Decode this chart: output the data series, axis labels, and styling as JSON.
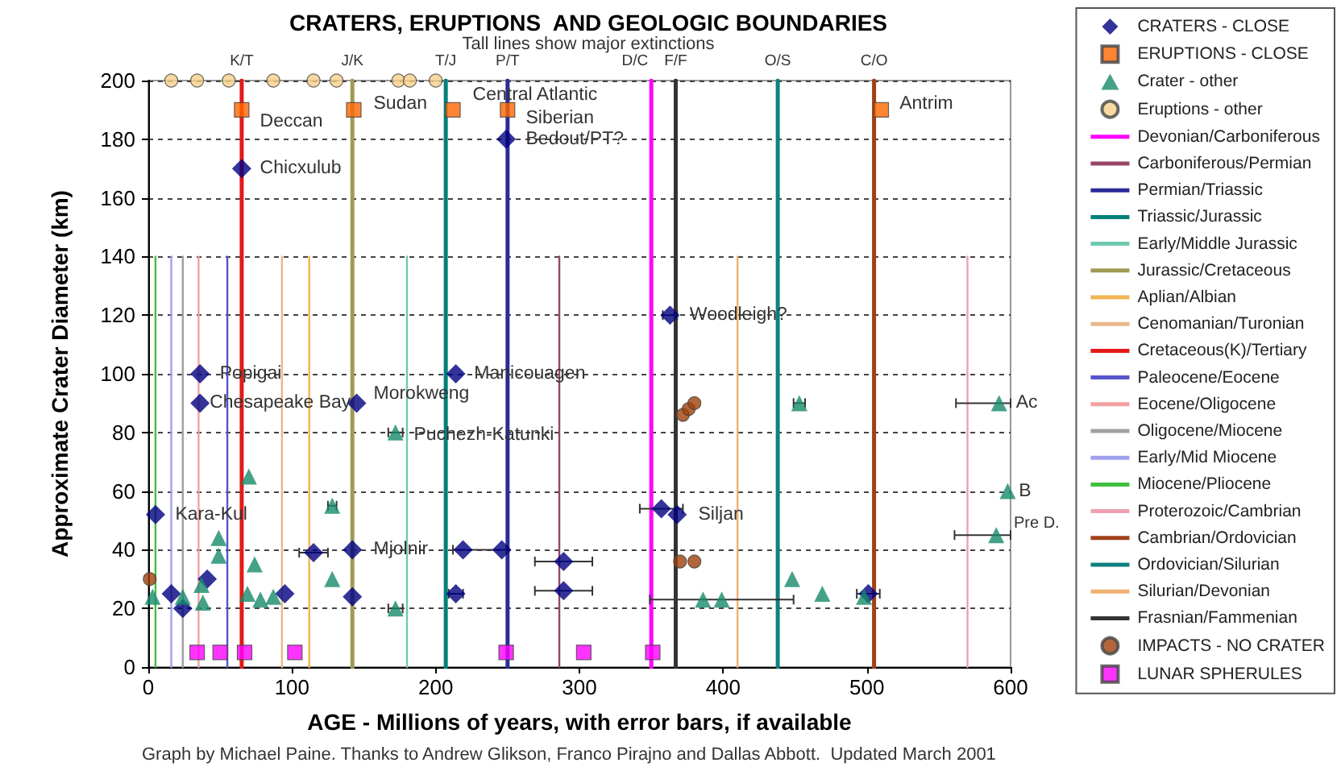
{
  "chart_data": {
    "type": "scatter",
    "title": "CRATERS, ERUPTIONS  AND GEOLOGIC BOUNDARIES",
    "subtitle": "Tall lines show major extinctions",
    "xlabel": "AGE - Millions of years, with error bars, if available",
    "ylabel": "Approximate Crater Diameter (km)",
    "xlim": [
      0,
      600
    ],
    "xticks": [
      0,
      100,
      200,
      300,
      400,
      500,
      600
    ],
    "ylim": [
      0,
      200
    ],
    "yticks": [
      0,
      20,
      40,
      60,
      80,
      100,
      120,
      140,
      160,
      180,
      200
    ],
    "grid": "y",
    "legend": "right",
    "series": [
      {
        "name": "CRATERS - CLOSE",
        "color": "#00007f",
        "marker": "diamond",
        "x": [
          5,
          16,
          24,
          36,
          36,
          41,
          65,
          95,
          115,
          142,
          142,
          145,
          214,
          214,
          219,
          246,
          249,
          289,
          289,
          363,
          357,
          368,
          501
        ],
        "values": [
          52,
          25,
          20,
          100,
          90,
          30,
          170,
          25,
          39,
          40,
          24,
          90,
          100,
          25,
          40,
          40,
          180,
          36,
          26,
          120,
          54,
          52,
          25
        ],
        "xerrors": [
          null,
          null,
          null,
          null,
          null,
          null,
          null,
          null,
          10,
          null,
          null,
          null,
          null,
          5,
          null,
          [
            212,
            250
          ],
          null,
          20,
          20,
          5,
          15,
          null,
          8
        ]
      },
      {
        "name": "ERUPTIONS - CLOSE",
        "color": "#ff6600",
        "marker": "square",
        "x": [
          65,
          143,
          212,
          250,
          510
        ],
        "values": [
          190,
          190,
          190,
          190,
          190
        ]
      },
      {
        "name": "Crater - other",
        "color": "#168a6a",
        "marker": "triangle",
        "x": [
          3,
          24,
          37,
          38,
          49,
          49,
          70,
          74,
          69,
          78,
          87,
          128,
          128,
          172,
          172,
          453,
          386,
          399,
          448,
          469,
          498,
          592,
          598,
          590
        ],
        "values": [
          24,
          24,
          28,
          22,
          44,
          38,
          65,
          35,
          25,
          23,
          24,
          55,
          30,
          80,
          20,
          90,
          23,
          23,
          30,
          25,
          24,
          90,
          60,
          45
        ],
        "xerrors": [
          null,
          null,
          null,
          null,
          null,
          null,
          null,
          null,
          null,
          null,
          null,
          3,
          null,
          5,
          5,
          4,
          null,
          50,
          null,
          null,
          null,
          [
            562,
            600
          ],
          null,
          [
            561,
            600
          ]
        ]
      },
      {
        "name": "Eruptions - other",
        "color": "#f7d08a",
        "marker": "circle",
        "x": [
          16,
          34,
          56,
          87,
          115,
          131,
          174,
          182,
          200
        ],
        "values": [
          200,
          200,
          200,
          200,
          200,
          200,
          200,
          200,
          200
        ]
      },
      {
        "name": "Devonian/Carboniferous",
        "type": "line",
        "color": "#ff00ff",
        "x": [
          350,
          350
        ],
        "values": [
          0,
          200
        ]
      },
      {
        "name": "Carboniferous/Permian",
        "type": "line",
        "color": "#994466",
        "x": [
          286,
          286
        ],
        "values": [
          0,
          140
        ]
      },
      {
        "name": "Permian/Triassic",
        "type": "line",
        "color": "#2b2b99",
        "x": [
          250,
          250
        ],
        "values": [
          0,
          200
        ]
      },
      {
        "name": "Triassic/Jurassic",
        "type": "line",
        "color": "#00807a",
        "x": [
          207,
          207
        ],
        "values": [
          0,
          200
        ]
      },
      {
        "name": "Early/Middle Jurassic",
        "type": "line",
        "color": "#70c8b0",
        "x": [
          180,
          180
        ],
        "values": [
          0,
          140
        ]
      },
      {
        "name": "Jurassic/Cretaceous",
        "type": "line",
        "color": "#a09a55",
        "x": [
          142,
          142
        ],
        "values": [
          0,
          200
        ]
      },
      {
        "name": "Aplian/Albian",
        "type": "line",
        "color": "#f2b455",
        "x": [
          112,
          112
        ],
        "values": [
          0,
          140
        ]
      },
      {
        "name": "Cenomanian/Turonian",
        "type": "line",
        "color": "#e8b88a",
        "x": [
          93,
          93
        ],
        "values": [
          0,
          140
        ]
      },
      {
        "name": "Cretaceous(K)/Tertiary",
        "type": "line",
        "color": "#e41a1a",
        "x": [
          65,
          65
        ],
        "values": [
          0,
          200
        ]
      },
      {
        "name": "Paleocene/Eocene",
        "type": "line",
        "color": "#5555cc",
        "x": [
          55,
          55
        ],
        "values": [
          0,
          140
        ]
      },
      {
        "name": "Eocene/Oligocene",
        "type": "line",
        "color": "#f4a0a0",
        "x": [
          35,
          35
        ],
        "values": [
          0,
          140
        ]
      },
      {
        "name": "Oligocene/Miocene",
        "type": "line",
        "color": "#a0a0a0",
        "x": [
          24,
          24
        ],
        "values": [
          0,
          140
        ]
      },
      {
        "name": "Early/Mid Miocene",
        "type": "line",
        "color": "#a0a0f0",
        "x": [
          16,
          16
        ],
        "values": [
          0,
          140
        ]
      },
      {
        "name": "Miocene/Pliocene",
        "type": "line",
        "color": "#40c040",
        "x": [
          5,
          5
        ],
        "values": [
          0,
          140
        ]
      },
      {
        "name": "Proterozoic/Cambrian",
        "type": "line",
        "color": "#f0a0b0",
        "x": [
          570,
          570
        ],
        "values": [
          0,
          140
        ]
      },
      {
        "name": "Cambrian/Ordovician",
        "type": "line",
        "color": "#a0401a",
        "x": [
          505,
          505
        ],
        "values": [
          0,
          200
        ]
      },
      {
        "name": "Ordovician/Silurian",
        "type": "line",
        "color": "#108080",
        "x": [
          438,
          438
        ],
        "values": [
          0,
          200
        ]
      },
      {
        "name": "Silurian/Devonian",
        "type": "line",
        "color": "#f0b070",
        "x": [
          410,
          410
        ],
        "values": [
          0,
          140
        ]
      },
      {
        "name": "Frasnian/Fammenian",
        "type": "line",
        "color": "#333333",
        "x": [
          367,
          367
        ],
        "values": [
          0,
          200
        ]
      },
      {
        "name": "IMPACTS - NO CRATER",
        "color": "#a0400a",
        "marker": "circle",
        "x": [
          1,
          372,
          376,
          380,
          370,
          380
        ],
        "values": [
          30,
          86,
          88,
          90,
          36,
          36
        ]
      },
      {
        "name": "LUNAR SPHERULES",
        "color": "#ff00ff",
        "marker": "square",
        "x": [
          34,
          50,
          67,
          102,
          249,
          303,
          351
        ],
        "values": [
          5,
          5,
          5,
          5,
          5,
          5,
          5
        ]
      }
    ],
    "annotations": [
      "Graph by Michael Paine. Thanks to Andrew Glikson, Franco Pirajno and Dallas Abbott.  Updated March 2001",
      "Pre D.",
      {
        "text": "K/T",
        "x": 65,
        "y": 200
      },
      {
        "text": "J/K",
        "x": 142,
        "y": 200
      },
      {
        "text": "T/J",
        "x": 207,
        "y": 200
      },
      {
        "text": "P/T",
        "x": 250,
        "y": 200
      },
      {
        "text": "D/C",
        "x": 350,
        "y": 200
      },
      {
        "text": "F/F",
        "x": 367,
        "y": 200
      },
      {
        "text": "O/S",
        "x": 438,
        "y": 200
      },
      {
        "text": "C/O",
        "x": 505,
        "y": 200
      },
      {
        "text": "Deccan",
        "x": 71,
        "y": 186
      },
      {
        "text": "Sudan",
        "x": 150,
        "y": 192
      },
      {
        "text": "Central Atlantic",
        "x": 219,
        "y": 195
      },
      {
        "text": "Siberian",
        "x": 256,
        "y": 187
      },
      {
        "text": "Bedout/PT?",
        "x": 256,
        "y": 180
      },
      {
        "text": "Antrim",
        "x": 516,
        "y": 192
      },
      {
        "text": "Chicxulub",
        "x": 71,
        "y": 170
      },
      {
        "text": "Popigai",
        "x": 43,
        "y": 100
      },
      {
        "text": "Chesapeake Bay",
        "x": 36,
        "y": 90
      },
      {
        "text": "Morokweng",
        "x": 150,
        "y": 93
      },
      {
        "text": "Puchezh-Katunki",
        "x": 178,
        "y": 79
      },
      {
        "text": "Manicouagen",
        "x": 220,
        "y": 100
      },
      {
        "text": "Woodleigh?",
        "x": 370,
        "y": 120
      },
      {
        "text": "Kara-Kul",
        "x": 12,
        "y": 52
      },
      {
        "text": "Mjolnir",
        "x": 150,
        "y": 40
      },
      {
        "text": "Siljan",
        "x": 376,
        "y": 52
      },
      {
        "text": "Ac",
        "x": 597,
        "y": 90
      },
      {
        "text": "B",
        "x": 599,
        "y": 60
      }
    ]
  }
}
